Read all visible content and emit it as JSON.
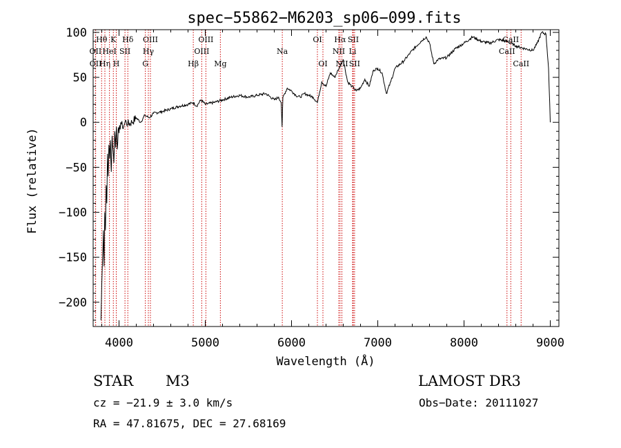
{
  "chart_data": {
    "type": "line",
    "title": "spec−55862−M6203_sp06−099.fits",
    "xlabel": "Wavelength (Å)",
    "ylabel": "Flux (relative)",
    "xlim": [
      3700,
      9100
    ],
    "ylim": [
      -227,
      103
    ],
    "x_ticks": [
      4000,
      5000,
      6000,
      7000,
      8000,
      9000
    ],
    "x_tick_labels": [
      "4000",
      "5000",
      "6000",
      "7000",
      "8000",
      "9000"
    ],
    "y_ticks": [
      100,
      50,
      0,
      -50,
      -100,
      -150,
      -200
    ],
    "y_tick_labels": [
      "100",
      "50",
      "0",
      "−50",
      "−100",
      "−150",
      "−200"
    ],
    "series": [
      {
        "name": "spectrum",
        "x": [
          3790,
          3800,
          3810,
          3818,
          3826,
          3834,
          3842,
          3850,
          3858,
          3866,
          3874,
          3882,
          3890,
          3900,
          3910,
          3920,
          3930,
          3940,
          3950,
          3960,
          3970,
          3980,
          3990,
          4000,
          4020,
          4040,
          4060,
          4080,
          4100,
          4150,
          4200,
          4250,
          4300,
          4350,
          4400,
          4500,
          4600,
          4700,
          4800,
          4860,
          4900,
          4950,
          5000,
          5100,
          5200,
          5300,
          5400,
          5500,
          5600,
          5700,
          5800,
          5850,
          5880,
          5890,
          5900,
          5920,
          5950,
          6000,
          6050,
          6100,
          6150,
          6200,
          6250,
          6300,
          6350,
          6400,
          6450,
          6500,
          6550,
          6600,
          6650,
          6700,
          6750,
          6800,
          6850,
          6900,
          6950,
          7000,
          7050,
          7100,
          7150,
          7200,
          7300,
          7400,
          7500,
          7560,
          7600,
          7650,
          7700,
          7800,
          7900,
          8000,
          8100,
          8200,
          8300,
          8400,
          8500,
          8600,
          8700,
          8800,
          8850,
          8900,
          8950,
          8980,
          9000
        ],
        "values": [
          -220,
          -180,
          -150,
          -120,
          -160,
          -100,
          -120,
          -70,
          -90,
          -35,
          -60,
          -25,
          -40,
          -20,
          -55,
          -15,
          -30,
          -45,
          -10,
          -28,
          -5,
          -30,
          -8,
          -12,
          0,
          -5,
          -3,
          2,
          -2,
          0,
          5,
          0,
          8,
          5,
          10,
          12,
          15,
          18,
          20,
          22,
          18,
          25,
          20,
          22,
          25,
          28,
          30,
          28,
          30,
          32,
          25,
          28,
          22,
          -5,
          28,
          32,
          38,
          35,
          30,
          28,
          32,
          30,
          28,
          22,
          45,
          40,
          55,
          50,
          60,
          70,
          45,
          40,
          35,
          38,
          48,
          40,
          58,
          60,
          55,
          32,
          45,
          60,
          68,
          80,
          90,
          95,
          88,
          65,
          70,
          72,
          82,
          88,
          95,
          90,
          88,
          92,
          90,
          85,
          82,
          80,
          88,
          100,
          98,
          60,
          0
        ]
      }
    ],
    "spectral_lines": [
      {
        "name": "Hθ",
        "x": 3798,
        "row": 1
      },
      {
        "name": "OII",
        "x": 3727,
        "row": 2
      },
      {
        "name": "OII",
        "x": 3729,
        "row": 3
      },
      {
        "name": "Hη",
        "x": 3836,
        "row": 3
      },
      {
        "name": "HeI",
        "x": 3889,
        "row": 2
      },
      {
        "name": "K",
        "x": 3934,
        "row": 1
      },
      {
        "name": "H",
        "x": 3968,
        "row": 3
      },
      {
        "name": "SII",
        "x": 4069,
        "row": 2
      },
      {
        "name": "Hδ",
        "x": 4102,
        "row": 1
      },
      {
        "name": "OIII",
        "x": 4364,
        "row": 1
      },
      {
        "name": "Hγ",
        "x": 4340,
        "row": 2
      },
      {
        "name": "G",
        "x": 4305,
        "row": 3
      },
      {
        "name": "Hβ",
        "x": 4861,
        "row": 3
      },
      {
        "name": "OIII",
        "x": 4959,
        "row": 2
      },
      {
        "name": "OIII",
        "x": 5007,
        "row": 1
      },
      {
        "name": "Mg",
        "x": 5175,
        "row": 3
      },
      {
        "name": "Na",
        "x": 5893,
        "row": 2
      },
      {
        "name": "OI",
        "x": 6300,
        "row": 1
      },
      {
        "name": "OI",
        "x": 6364,
        "row": 3
      },
      {
        "name": "Hα",
        "x": 6563,
        "row": 1
      },
      {
        "name": "NII",
        "x": 6548,
        "row": 2
      },
      {
        "name": "NII",
        "x": 6584,
        "row": 3
      },
      {
        "name": "SII",
        "x": 6716,
        "row": 1
      },
      {
        "name": "Li",
        "x": 6708,
        "row": 2
      },
      {
        "name": "SII",
        "x": 6731,
        "row": 3
      },
      {
        "name": "CaII",
        "x": 8542,
        "row": 1
      },
      {
        "name": "CaII",
        "x": 8498,
        "row": 2
      },
      {
        "name": "CaII",
        "x": 8662,
        "row": 3
      }
    ]
  },
  "info": {
    "object_class": "STAR",
    "subclass": "M3",
    "survey": "LAMOST DR3",
    "redshift": "cz = −21.9 ± 3.0 km/s",
    "obs_date": "Obs−Date: 20111027",
    "coords": "RA =  47.81675, DEC =  27.68169"
  },
  "colors": {
    "line_marker": "#cc0000",
    "spectrum": "#000000",
    "axes": "#000000"
  }
}
